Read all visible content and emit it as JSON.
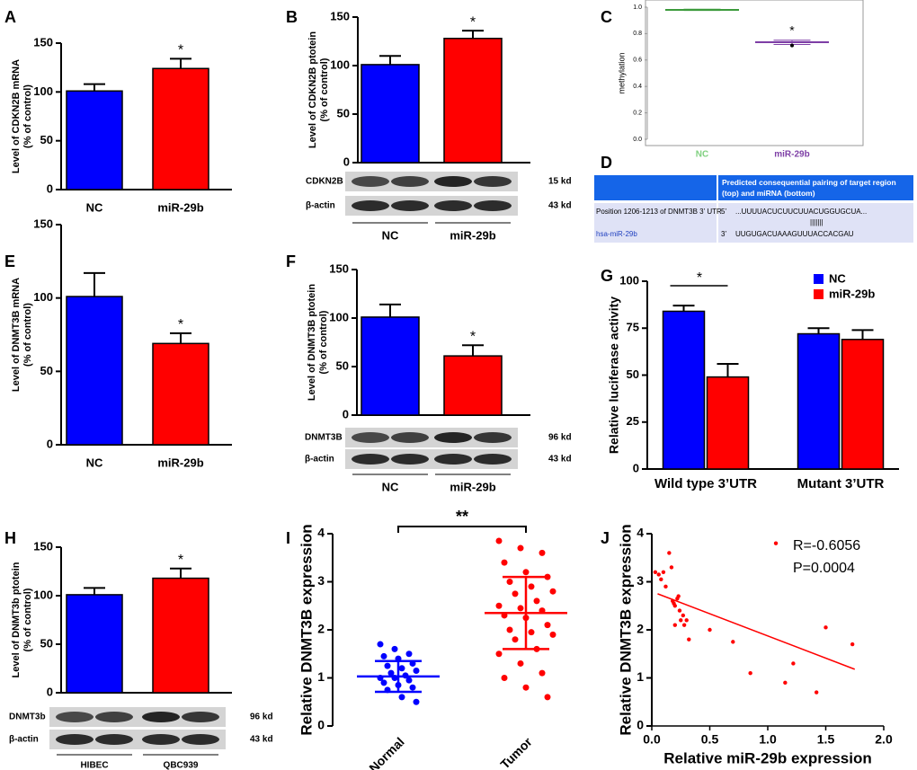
{
  "chart_data": [
    {
      "panel": "A",
      "type": "bar",
      "ylabel": [
        "Level of CDKN2B mRNA",
        "(% of control)"
      ],
      "categories": [
        "NC",
        "miR-29b"
      ],
      "values": [
        101,
        124
      ],
      "errors": [
        7,
        10
      ],
      "colors": [
        "#0000ff",
        "#ff0000"
      ],
      "ylim": [
        0,
        150
      ],
      "yticks": [
        0,
        50,
        100,
        150
      ],
      "significance": "*"
    },
    {
      "panel": "B",
      "type": "bar",
      "ylabel": [
        "Level of CDKN2B ptotein",
        "(% of control)"
      ],
      "categories": [
        "NC",
        "miR-29b"
      ],
      "values": [
        101,
        128
      ],
      "errors": [
        9,
        8
      ],
      "colors": [
        "#0000ff",
        "#ff0000"
      ],
      "ylim": [
        0,
        150
      ],
      "yticks": [
        0,
        50,
        100,
        150
      ],
      "significance": "*",
      "blot": {
        "rows": [
          "CDKN2B",
          "β-actin"
        ],
        "sizes": [
          "15 kd",
          "43 kd"
        ]
      }
    },
    {
      "panel": "C",
      "type": "box",
      "ylabel": "methylation",
      "categories": [
        "NC",
        "miR-29b"
      ],
      "colors": [
        "#3c9a3c",
        "#7e3fa6"
      ],
      "label_colors": [
        "#80d080",
        "#7e3fa6"
      ],
      "min": [
        0.975,
        0.718
      ],
      "q1": [
        0.977,
        0.728
      ],
      "median": [
        0.98,
        0.735
      ],
      "q3": [
        0.983,
        0.742
      ],
      "max": [
        0.985,
        0.75
      ],
      "outliers": [
        [],
        [
          0.71
        ]
      ],
      "ylim": [
        0,
        1
      ],
      "yticks": [
        {
          "value": 0,
          "label": "0.0"
        },
        0.2,
        0.4,
        0.6,
        0.8,
        {
          "value": 1,
          "label": "1.0"
        }
      ],
      "significance": "*"
    },
    {
      "panel": "E",
      "type": "bar",
      "ylabel": [
        "Level of DNMT3B mRNA",
        "(% of control)"
      ],
      "categories": [
        "NC",
        "miR-29b"
      ],
      "values": [
        101,
        69
      ],
      "errors": [
        16,
        7
      ],
      "colors": [
        "#0000ff",
        "#ff0000"
      ],
      "ylim": [
        0,
        150
      ],
      "yticks": [
        0,
        50,
        100,
        150
      ],
      "significance": "*"
    },
    {
      "panel": "F",
      "type": "bar",
      "ylabel": [
        "Level of DNMT3B ptotein",
        "(% of control)"
      ],
      "categories": [
        "NC",
        "miR-29b"
      ],
      "values": [
        101,
        61
      ],
      "errors": [
        13,
        11
      ],
      "colors": [
        "#0000ff",
        "#ff0000"
      ],
      "ylim": [
        0,
        150
      ],
      "yticks": [
        0,
        50,
        100,
        150
      ],
      "significance": "*",
      "blot": {
        "rows": [
          "DNMT3B",
          "β-actin"
        ],
        "sizes": [
          "96 kd",
          "43 kd"
        ]
      }
    },
    {
      "panel": "G",
      "type": "bar",
      "ylabel": "Relative luciferase activity",
      "categories": [
        "Wild type 3’UTR",
        "Mutant 3’UTR"
      ],
      "series": [
        {
          "name": "NC",
          "color": "#0000ff",
          "values": [
            84,
            72
          ],
          "errors": [
            3,
            3
          ]
        },
        {
          "name": "miR-29b",
          "color": "#ff0000",
          "values": [
            49,
            69
          ],
          "errors": [
            7,
            5
          ]
        }
      ],
      "ylim": [
        0,
        100
      ],
      "yticks": [
        0,
        25,
        50,
        75,
        100
      ],
      "significance": "*"
    },
    {
      "panel": "H",
      "type": "bar",
      "ylabel": [
        "Level of DNMT3b ptotein",
        "(% of control)"
      ],
      "categories": [
        "HIBEC",
        "QBC939"
      ],
      "values": [
        101,
        118
      ],
      "errors": [
        7,
        10
      ],
      "colors": [
        "#0000ff",
        "#ff0000"
      ],
      "ylim": [
        0,
        150
      ],
      "yticks": [
        0,
        50,
        100,
        150
      ],
      "significance": "*",
      "blot": {
        "rows": [
          "DNMT3b",
          "β-actin"
        ],
        "sizes": [
          "96 kd",
          "43 kd"
        ]
      }
    },
    {
      "panel": "I",
      "type": "dot",
      "ylabel": "Relative DNMT3B expression",
      "categories": [
        "Normal",
        "Tumor"
      ],
      "colors": [
        "#0000ff",
        "#ff0000"
      ],
      "values": [
        [
          1.7,
          1.6,
          1.5,
          1.45,
          1.4,
          1.3,
          1.25,
          1.2,
          1.15,
          1.1,
          1.05,
          1.0,
          1.0,
          0.95,
          0.9,
          0.85,
          0.8,
          0.75,
          0.6,
          0.5
        ],
        [
          3.85,
          3.7,
          3.6,
          3.4,
          3.2,
          3.1,
          3.0,
          2.9,
          2.8,
          2.75,
          2.6,
          2.5,
          2.45,
          2.4,
          2.3,
          2.25,
          2.1,
          2.0,
          1.95,
          1.9,
          1.8,
          1.6,
          1.5,
          1.3,
          1.1,
          1.0,
          0.8,
          0.6
        ]
      ],
      "mean": [
        1.03,
        2.35
      ],
      "sd": [
        0.32,
        0.75
      ],
      "ylim": [
        0,
        4
      ],
      "yticks": [
        0,
        1,
        2,
        3,
        4
      ],
      "significance": "**"
    },
    {
      "panel": "J",
      "type": "scatter",
      "xlabel": "Relative miR-29b expression",
      "ylabel": "Relative DNMT3B expression",
      "color": "#ff0000",
      "x": [
        0.03,
        0.06,
        0.08,
        0.1,
        0.12,
        0.15,
        0.17,
        0.18,
        0.19,
        0.2,
        0.22,
        0.24,
        0.25,
        0.28,
        0.3,
        0.32,
        0.2,
        0.23,
        0.5,
        0.7,
        0.85,
        1.07,
        1.15,
        1.22,
        1.42,
        1.5,
        1.73,
        0.27
      ],
      "y": [
        3.2,
        3.15,
        3.05,
        3.2,
        2.9,
        3.6,
        3.3,
        2.6,
        2.55,
        2.5,
        2.65,
        2.4,
        2.2,
        2.1,
        2.2,
        1.8,
        2.1,
        2.7,
        2.0,
        1.75,
        1.1,
        3.8,
        0.9,
        1.3,
        0.7,
        2.05,
        1.7,
        2.3
      ],
      "fit": {
        "x": [
          0.05,
          1.75
        ],
        "y": [
          2.75,
          1.18
        ]
      },
      "xlim": [
        0,
        2
      ],
      "xticks": [
        {
          "value": 0,
          "label": "0.0"
        },
        0.5,
        {
          "value": 1,
          "label": "1.0"
        },
        1.5,
        {
          "value": 2,
          "label": "2.0"
        }
      ],
      "ylim": [
        0,
        4
      ],
      "yticks": [
        0,
        1,
        2,
        3,
        4
      ],
      "annotations": [
        "R=-0.6056",
        "P=0.0004"
      ]
    }
  ],
  "pairing_table": {
    "panel": "D",
    "header": "Predicted consequential pairing of target region (top) and miRNA (bottom)",
    "target": {
      "label": "Position 1206-1213 of DNMT3B 3’ UTR",
      "end": "5’",
      "seq": "...UUUUACUCUUCUUACUGGUGCUA..."
    },
    "pairing": "|||||||",
    "mirna": {
      "label": "hsa-miR-29b",
      "end": "3’",
      "seq": "UUGUGACUAAAGUUUACCACGAU"
    }
  }
}
